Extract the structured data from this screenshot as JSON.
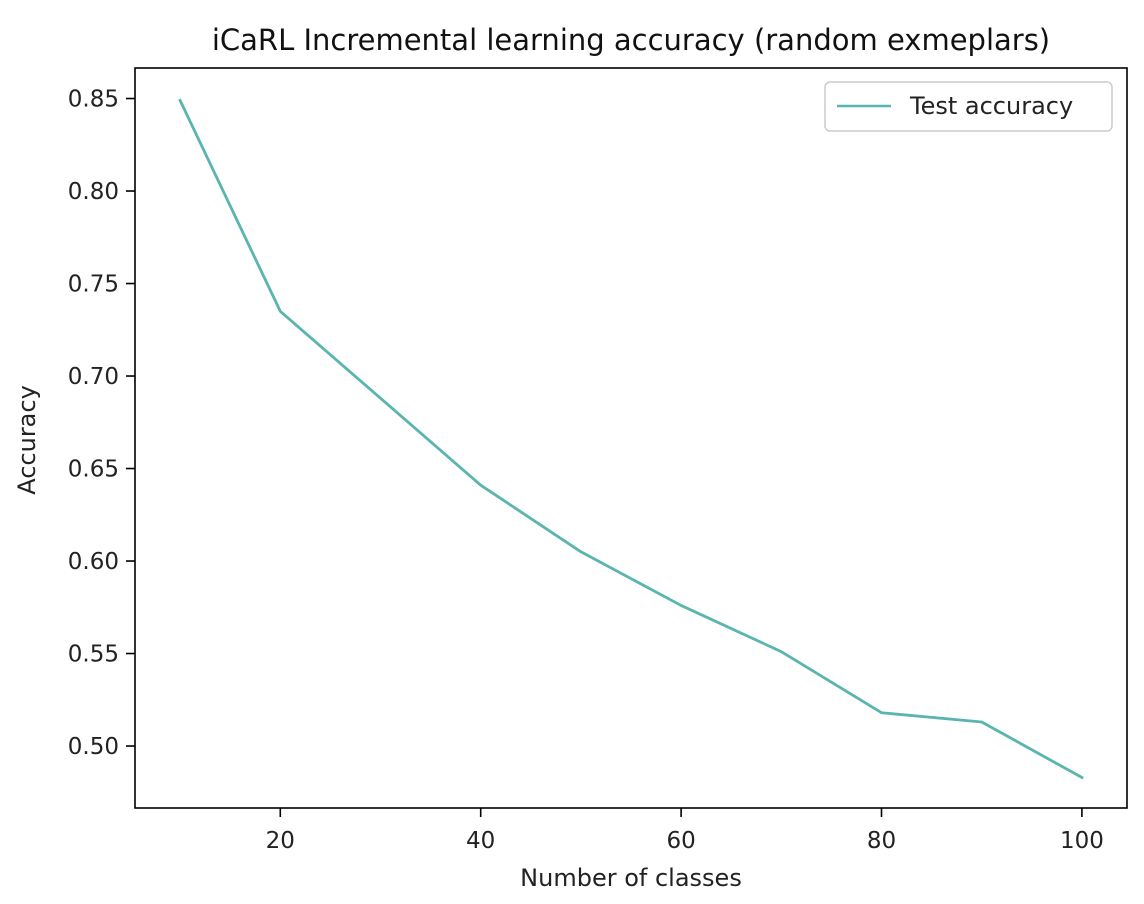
{
  "chart_data": {
    "type": "line",
    "title": "iCaRL Incremental learning accuracy (random exmeplars)",
    "xlabel": "Number of classes",
    "ylabel": "Accuracy",
    "xlim": [
      5.5,
      104.5
    ],
    "ylim": [
      0.4665,
      0.8665
    ],
    "x_ticks": [
      20,
      40,
      60,
      80,
      100
    ],
    "x_tick_labels": [
      "20",
      "40",
      "60",
      "80",
      "100"
    ],
    "y_ticks": [
      0.5,
      0.55,
      0.6,
      0.65,
      0.7,
      0.75,
      0.8,
      0.85
    ],
    "y_tick_labels": [
      "0.50",
      "0.55",
      "0.60",
      "0.65",
      "0.70",
      "0.75",
      "0.80",
      "0.85"
    ],
    "grid": false,
    "legend_position": "top-right",
    "series": [
      {
        "name": "Test accuracy",
        "color": "#5ab4b0",
        "x": [
          10,
          20,
          30,
          40,
          50,
          60,
          70,
          80,
          90,
          100
        ],
        "y": [
          0.849,
          0.735,
          0.688,
          0.641,
          0.605,
          0.576,
          0.551,
          0.518,
          0.513,
          0.483
        ]
      }
    ]
  }
}
